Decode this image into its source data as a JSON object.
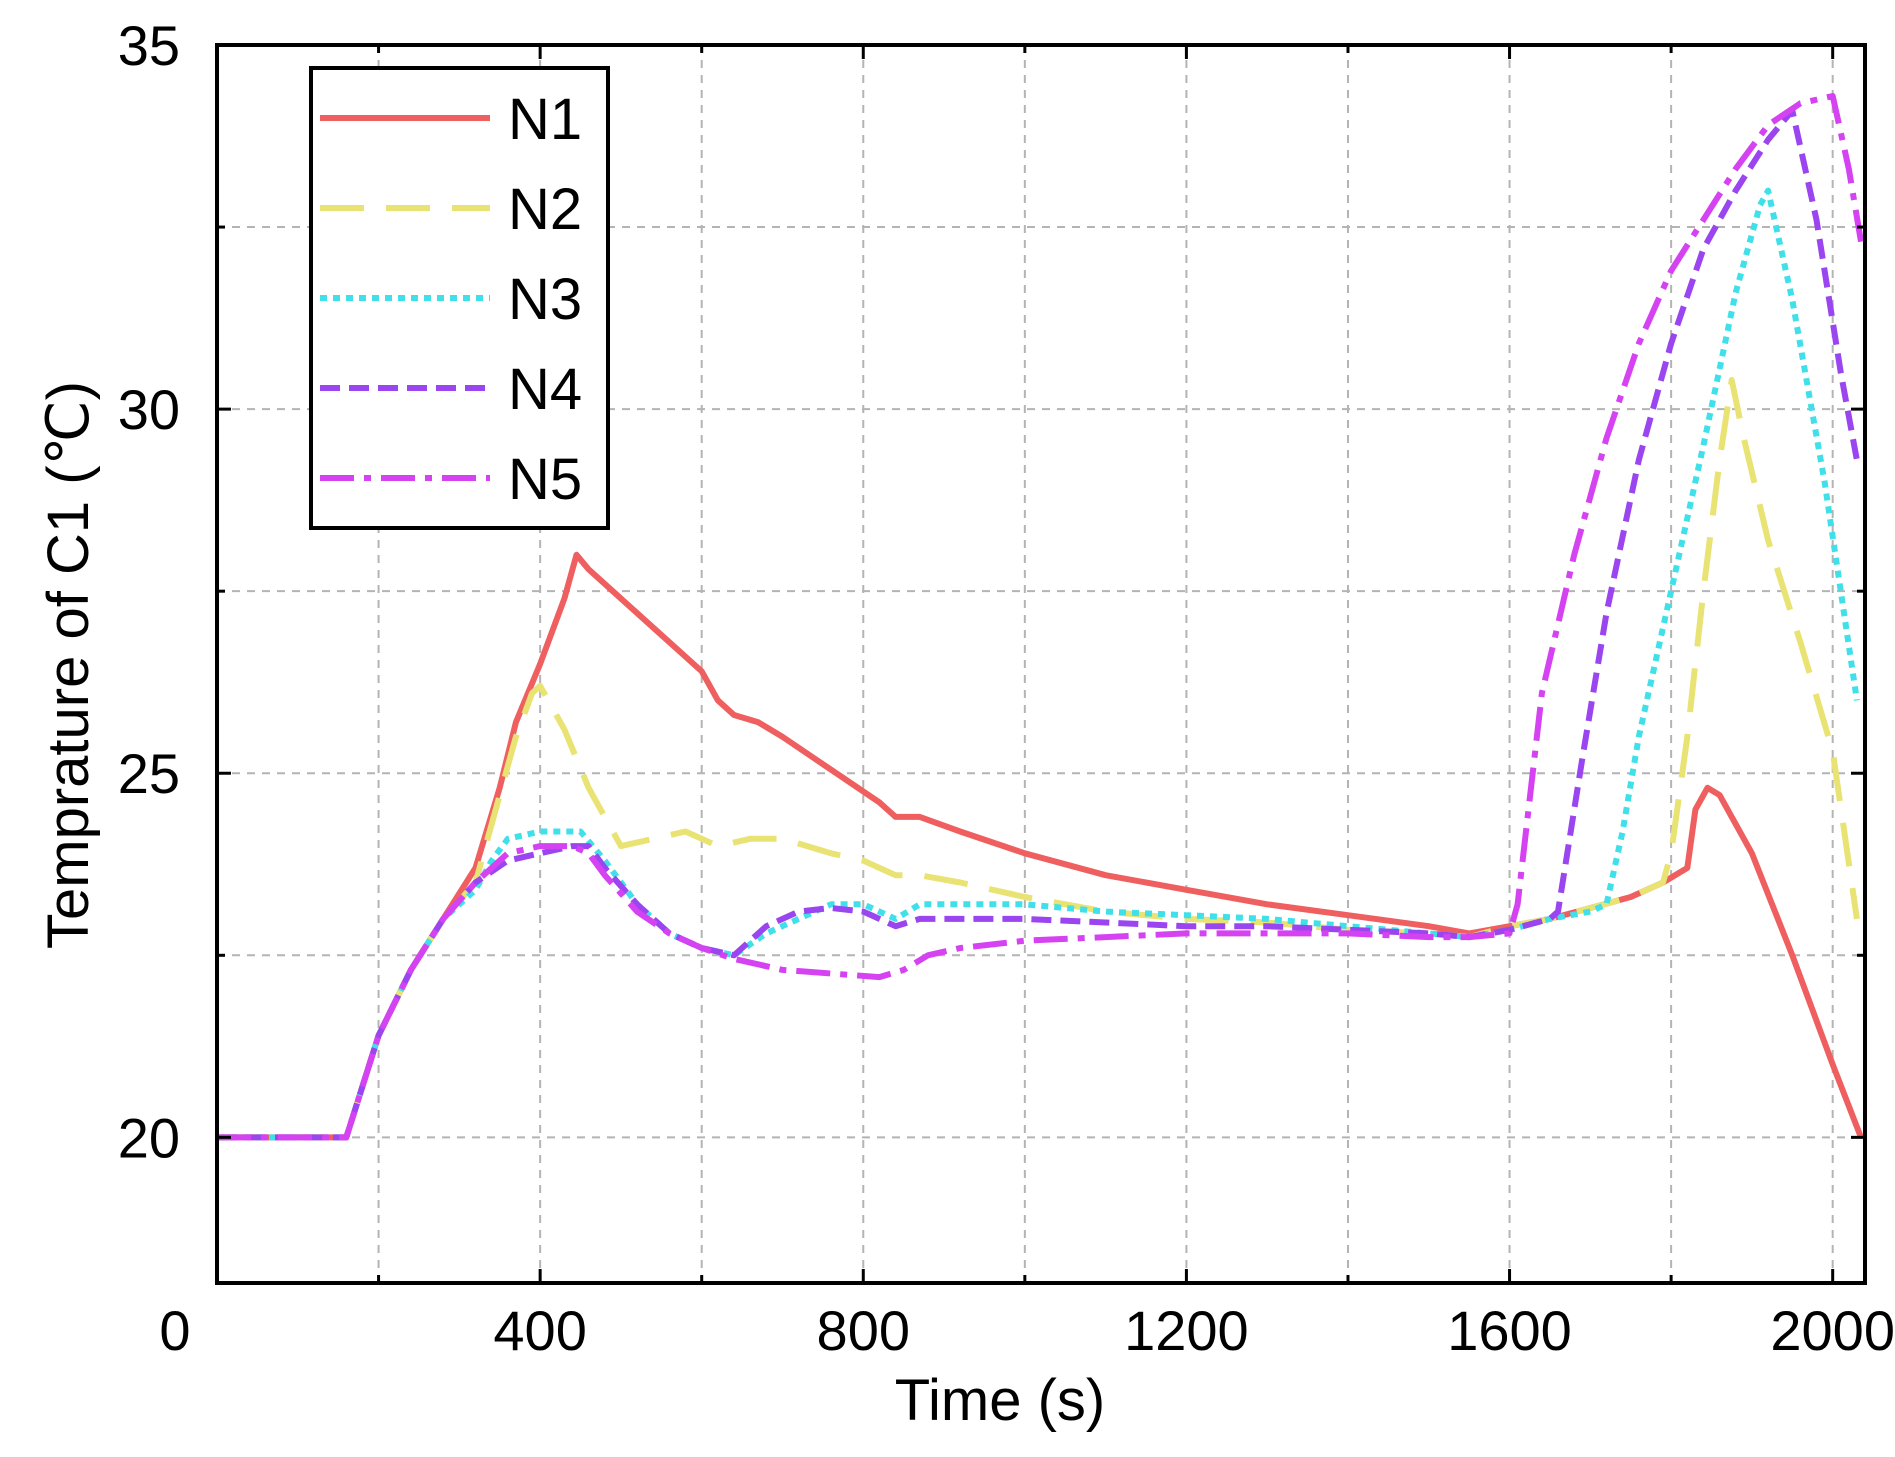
{
  "chart_data": {
    "type": "line",
    "title": "",
    "xlabel": "Time (s)",
    "ylabel": "Temprature of C1 (℃)",
    "xlim": [
      0,
      2040
    ],
    "ylim": [
      18,
      35
    ],
    "x_ticks": [
      0,
      400,
      800,
      1200,
      1600,
      2000
    ],
    "y_ticks": [
      20,
      25,
      30,
      35
    ],
    "grid": true,
    "legend_position": "top-left",
    "series": [
      {
        "name": "N1",
        "color": "#ef5f5f",
        "dash": "solid",
        "points": [
          [
            0,
            20
          ],
          [
            160,
            20
          ],
          [
            200,
            21.4
          ],
          [
            240,
            22.3
          ],
          [
            280,
            23.0
          ],
          [
            320,
            23.7
          ],
          [
            350,
            24.8
          ],
          [
            370,
            25.7
          ],
          [
            400,
            26.5
          ],
          [
            430,
            27.4
          ],
          [
            445,
            28.0
          ],
          [
            460,
            27.8
          ],
          [
            500,
            27.4
          ],
          [
            540,
            27.0
          ],
          [
            580,
            26.6
          ],
          [
            600,
            26.4
          ],
          [
            620,
            26.0
          ],
          [
            640,
            25.8
          ],
          [
            670,
            25.7
          ],
          [
            700,
            25.5
          ],
          [
            740,
            25.2
          ],
          [
            780,
            24.9
          ],
          [
            820,
            24.6
          ],
          [
            840,
            24.4
          ],
          [
            870,
            24.4
          ],
          [
            920,
            24.2
          ],
          [
            1000,
            23.9
          ],
          [
            1100,
            23.6
          ],
          [
            1200,
            23.4
          ],
          [
            1300,
            23.2
          ],
          [
            1400,
            23.05
          ],
          [
            1500,
            22.9
          ],
          [
            1550,
            22.8
          ],
          [
            1600,
            22.9
          ],
          [
            1650,
            23.0
          ],
          [
            1700,
            23.15
          ],
          [
            1750,
            23.3
          ],
          [
            1790,
            23.5
          ],
          [
            1820,
            23.7
          ],
          [
            1830,
            24.5
          ],
          [
            1845,
            24.8
          ],
          [
            1860,
            24.7
          ],
          [
            1900,
            23.9
          ],
          [
            1950,
            22.5
          ],
          [
            2000,
            21.0
          ],
          [
            2035,
            20.0
          ]
        ]
      },
      {
        "name": "N2",
        "color": "#e9e373",
        "dash": "long-dash",
        "points": [
          [
            0,
            20
          ],
          [
            160,
            20
          ],
          [
            200,
            21.4
          ],
          [
            240,
            22.3
          ],
          [
            280,
            23.0
          ],
          [
            320,
            23.5
          ],
          [
            350,
            24.7
          ],
          [
            370,
            25.5
          ],
          [
            390,
            26.1
          ],
          [
            400,
            26.2
          ],
          [
            430,
            25.6
          ],
          [
            460,
            24.8
          ],
          [
            500,
            24.0
          ],
          [
            540,
            24.1
          ],
          [
            580,
            24.2
          ],
          [
            620,
            24.0
          ],
          [
            660,
            24.1
          ],
          [
            700,
            24.1
          ],
          [
            760,
            23.9
          ],
          [
            800,
            23.8
          ],
          [
            840,
            23.6
          ],
          [
            870,
            23.6
          ],
          [
            920,
            23.5
          ],
          [
            1000,
            23.3
          ],
          [
            1100,
            23.1
          ],
          [
            1200,
            23.0
          ],
          [
            1300,
            22.95
          ],
          [
            1400,
            22.85
          ],
          [
            1500,
            22.8
          ],
          [
            1550,
            22.75
          ],
          [
            1600,
            22.9
          ],
          [
            1650,
            23.0
          ],
          [
            1700,
            23.15
          ],
          [
            1750,
            23.3
          ],
          [
            1790,
            23.5
          ],
          [
            1800,
            23.9
          ],
          [
            1820,
            25.5
          ],
          [
            1840,
            27.5
          ],
          [
            1860,
            29.3
          ],
          [
            1875,
            30.4
          ],
          [
            1890,
            29.6
          ],
          [
            1920,
            28.2
          ],
          [
            1960,
            26.8
          ],
          [
            2000,
            25.3
          ],
          [
            2030,
            23.0
          ]
        ]
      },
      {
        "name": "N3",
        "color": "#3fe0e9",
        "dash": "dotted",
        "points": [
          [
            0,
            20
          ],
          [
            160,
            20
          ],
          [
            200,
            21.4
          ],
          [
            240,
            22.3
          ],
          [
            280,
            23.0
          ],
          [
            320,
            23.4
          ],
          [
            340,
            23.8
          ],
          [
            360,
            24.1
          ],
          [
            400,
            24.2
          ],
          [
            450,
            24.2
          ],
          [
            480,
            23.8
          ],
          [
            520,
            23.2
          ],
          [
            560,
            22.8
          ],
          [
            600,
            22.6
          ],
          [
            640,
            22.5
          ],
          [
            680,
            22.8
          ],
          [
            720,
            23.0
          ],
          [
            760,
            23.2
          ],
          [
            800,
            23.2
          ],
          [
            840,
            23.0
          ],
          [
            870,
            23.2
          ],
          [
            900,
            23.2
          ],
          [
            1000,
            23.2
          ],
          [
            1100,
            23.1
          ],
          [
            1200,
            23.05
          ],
          [
            1300,
            23.0
          ],
          [
            1400,
            22.9
          ],
          [
            1500,
            22.8
          ],
          [
            1550,
            22.75
          ],
          [
            1600,
            22.85
          ],
          [
            1650,
            23.0
          ],
          [
            1700,
            23.1
          ],
          [
            1720,
            23.2
          ],
          [
            1740,
            24.2
          ],
          [
            1760,
            25.5
          ],
          [
            1800,
            27.5
          ],
          [
            1840,
            29.5
          ],
          [
            1880,
            31.6
          ],
          [
            1910,
            32.8
          ],
          [
            1920,
            33.0
          ],
          [
            1950,
            31.5
          ],
          [
            1990,
            29.0
          ],
          [
            2030,
            26.0
          ]
        ]
      },
      {
        "name": "N4",
        "color": "#9a45f0",
        "dash": "dashed",
        "points": [
          [
            0,
            20
          ],
          [
            160,
            20
          ],
          [
            200,
            21.4
          ],
          [
            240,
            22.3
          ],
          [
            280,
            23.0
          ],
          [
            320,
            23.5
          ],
          [
            360,
            23.8
          ],
          [
            400,
            23.9
          ],
          [
            440,
            24.0
          ],
          [
            460,
            24.0
          ],
          [
            480,
            23.7
          ],
          [
            520,
            23.2
          ],
          [
            560,
            22.8
          ],
          [
            600,
            22.6
          ],
          [
            640,
            22.5
          ],
          [
            680,
            22.9
          ],
          [
            720,
            23.1
          ],
          [
            760,
            23.15
          ],
          [
            800,
            23.1
          ],
          [
            840,
            22.9
          ],
          [
            870,
            23.0
          ],
          [
            920,
            23.0
          ],
          [
            1000,
            23.0
          ],
          [
            1100,
            22.95
          ],
          [
            1200,
            22.9
          ],
          [
            1300,
            22.9
          ],
          [
            1400,
            22.85
          ],
          [
            1500,
            22.8
          ],
          [
            1550,
            22.75
          ],
          [
            1600,
            22.85
          ],
          [
            1650,
            23.0
          ],
          [
            1660,
            23.1
          ],
          [
            1690,
            25.2
          ],
          [
            1720,
            27.2
          ],
          [
            1760,
            29.3
          ],
          [
            1800,
            30.9
          ],
          [
            1840,
            32.2
          ],
          [
            1880,
            33.0
          ],
          [
            1920,
            33.7
          ],
          [
            1950,
            34.1
          ],
          [
            1980,
            32.6
          ],
          [
            2010,
            30.5
          ],
          [
            2030,
            29.3
          ]
        ]
      },
      {
        "name": "N5",
        "color": "#d542f2",
        "dash": "dash-dot",
        "points": [
          [
            0,
            20
          ],
          [
            160,
            20
          ],
          [
            200,
            21.4
          ],
          [
            240,
            22.3
          ],
          [
            280,
            23.0
          ],
          [
            320,
            23.5
          ],
          [
            360,
            23.9
          ],
          [
            400,
            24.0
          ],
          [
            440,
            24.0
          ],
          [
            460,
            23.9
          ],
          [
            480,
            23.6
          ],
          [
            520,
            23.1
          ],
          [
            560,
            22.8
          ],
          [
            600,
            22.6
          ],
          [
            640,
            22.45
          ],
          [
            700,
            22.3
          ],
          [
            760,
            22.25
          ],
          [
            820,
            22.2
          ],
          [
            850,
            22.3
          ],
          [
            880,
            22.5
          ],
          [
            920,
            22.6
          ],
          [
            1000,
            22.7
          ],
          [
            1100,
            22.75
          ],
          [
            1200,
            22.8
          ],
          [
            1300,
            22.8
          ],
          [
            1400,
            22.8
          ],
          [
            1500,
            22.75
          ],
          [
            1550,
            22.75
          ],
          [
            1600,
            22.8
          ],
          [
            1610,
            23.2
          ],
          [
            1640,
            26.1
          ],
          [
            1680,
            28.0
          ],
          [
            1720,
            29.6
          ],
          [
            1760,
            30.9
          ],
          [
            1800,
            31.9
          ],
          [
            1840,
            32.6
          ],
          [
            1880,
            33.3
          ],
          [
            1920,
            33.9
          ],
          [
            1960,
            34.2
          ],
          [
            2000,
            34.3
          ],
          [
            2020,
            33.3
          ],
          [
            2035,
            32.3
          ]
        ]
      }
    ]
  }
}
